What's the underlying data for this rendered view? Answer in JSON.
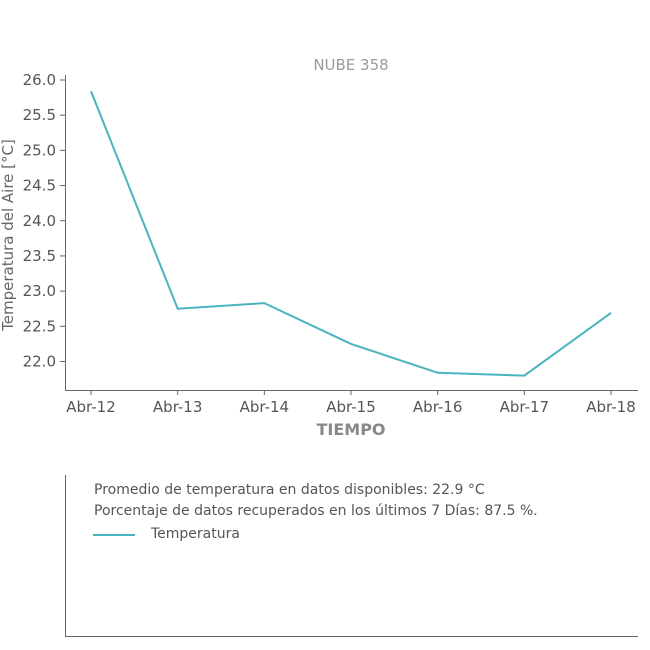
{
  "chart_data": {
    "type": "line",
    "title": "NUBE 358",
    "xlabel": "TIEMPO",
    "ylabel": "Temperatura del Aire [°C]",
    "categories": [
      "Abr-12",
      "Abr-13",
      "Abr-14",
      "Abr-15",
      "Abr-16",
      "Abr-17",
      "Abr-18"
    ],
    "series": [
      {
        "name": "Temperatura",
        "values": [
          25.84,
          22.75,
          22.83,
          22.25,
          21.84,
          21.8,
          22.69
        ]
      }
    ],
    "yticks": [
      "22.0",
      "22.5",
      "23.0",
      "23.5",
      "24.0",
      "24.5",
      "25.0",
      "25.5",
      "26.0"
    ],
    "ylim": [
      21.6,
      26.1
    ],
    "grid": false,
    "line_color": "#4ab3c0"
  },
  "info": {
    "avg_text": "Promedio de temperatura en datos disponibles: 22.9 °C",
    "pct_text": "Porcentaje de datos recuperados en los últimos 7 Días: 87.5 %.",
    "legend_label": "Temperatura"
  }
}
